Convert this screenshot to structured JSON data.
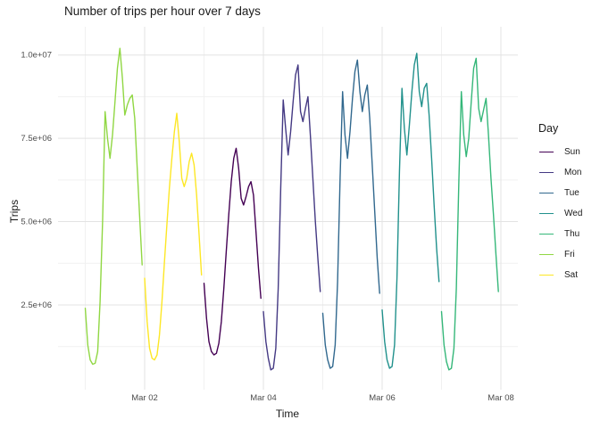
{
  "title": "Number of trips per hour over 7 days",
  "axes": {
    "x_label": "Time",
    "y_label": "Trips",
    "x_tick_labels": [
      "Mar 02",
      "Mar 04",
      "Mar 06",
      "Mar 08"
    ],
    "y_tick_labels": [
      "2.5e+06",
      "5.0e+06",
      "7.5e+06",
      "1.0e+07"
    ]
  },
  "legend": {
    "title": "Day",
    "entries": [
      {
        "label": "Sun",
        "color": "#440154"
      },
      {
        "label": "Mon",
        "color": "#443983"
      },
      {
        "label": "Tue",
        "color": "#31688E"
      },
      {
        "label": "Wed",
        "color": "#21918C"
      },
      {
        "label": "Thu",
        "color": "#35B779"
      },
      {
        "label": "Fri",
        "color": "#90D743"
      },
      {
        "label": "Sat",
        "color": "#FDE725"
      }
    ]
  },
  "chart_data": {
    "type": "line",
    "title": "Number of trips per hour over 7 days",
    "xlabel": "Time",
    "ylabel": "Trips",
    "x_unit": "hour (hourly points, 24 per day, 7 consecutive days)",
    "x_axis_ticks": [
      {
        "label": "Mar 02",
        "hour_offset": 24
      },
      {
        "label": "Mar 04",
        "hour_offset": 72
      },
      {
        "label": "Mar 06",
        "hour_offset": 120
      },
      {
        "label": "Mar 08",
        "hour_offset": 168
      }
    ],
    "x_axis_minor_gridlines_hour_offsets": [
      0,
      48,
      96,
      144
    ],
    "y_axis_ticks": [
      {
        "label": "2.5e+06",
        "value": 2500000
      },
      {
        "label": "5.0e+06",
        "value": 5000000
      },
      {
        "label": "7.5e+06",
        "value": 7500000
      },
      {
        "label": "1.0e+07",
        "value": 10000000
      }
    ],
    "y_axis_minor_gridline_values": [
      1250000,
      3750000,
      6250000,
      8750000
    ],
    "ylim": [
      0,
      10600000
    ],
    "grid": "major and minor, light gray on white background, no panel border",
    "legend_position": "right",
    "legend_title": "Day",
    "legend_order": [
      "Sun",
      "Mon",
      "Tue",
      "Wed",
      "Thu",
      "Fri",
      "Sat"
    ],
    "series_plot_order_note": "Each day drawn as a separate colored segment in chronological order; small gaps between days",
    "series": [
      {
        "name": "Fri",
        "day_index": 0,
        "color": "#90D743",
        "values": [
          2400000,
          1300000,
          850000,
          720000,
          750000,
          1100000,
          2600000,
          5000000,
          8300000,
          7500000,
          6900000,
          7600000,
          8600000,
          9600000,
          10200000,
          9300000,
          8200000,
          8500000,
          8700000,
          8800000,
          8100000,
          6600000,
          5100000,
          3700000
        ]
      },
      {
        "name": "Sat",
        "day_index": 1,
        "color": "#FDE725",
        "values": [
          3300000,
          2000000,
          1200000,
          900000,
          850000,
          1000000,
          1600000,
          2600000,
          3800000,
          4900000,
          6000000,
          6900000,
          7700000,
          8250000,
          7400000,
          6300000,
          6050000,
          6300000,
          6800000,
          7050000,
          6700000,
          5800000,
          4600000,
          3400000
        ]
      },
      {
        "name": "Sun",
        "day_index": 2,
        "color": "#440154",
        "values": [
          3150000,
          2100000,
          1400000,
          1100000,
          1000000,
          1050000,
          1350000,
          2000000,
          3000000,
          4100000,
          5200000,
          6200000,
          6900000,
          7200000,
          6600000,
          5700000,
          5500000,
          5750000,
          6050000,
          6200000,
          5800000,
          4700000,
          3600000,
          2700000
        ]
      },
      {
        "name": "Mon",
        "day_index": 3,
        "color": "#443983",
        "values": [
          2300000,
          1400000,
          900000,
          550000,
          600000,
          1200000,
          3000000,
          6000000,
          8650000,
          7800000,
          7000000,
          7700000,
          8600000,
          9400000,
          9700000,
          8300000,
          8000000,
          8400000,
          8750000,
          7600000,
          6300000,
          5000000,
          3900000,
          2900000
        ]
      },
      {
        "name": "Tue",
        "day_index": 4,
        "color": "#31688E",
        "values": [
          2250000,
          1300000,
          850000,
          600000,
          650000,
          1300000,
          3200000,
          6300000,
          8900000,
          7600000,
          6900000,
          7700000,
          8700000,
          9500000,
          9850000,
          8900000,
          8300000,
          8800000,
          9100000,
          8100000,
          6700000,
          5300000,
          3900000,
          2850000
        ]
      },
      {
        "name": "Wed",
        "day_index": 5,
        "color": "#21918C",
        "values": [
          2350000,
          1400000,
          850000,
          600000,
          650000,
          1300000,
          3300000,
          6500000,
          9000000,
          7800000,
          7000000,
          7900000,
          8900000,
          9700000,
          10050000,
          8900000,
          8450000,
          9000000,
          9150000,
          8200000,
          6900000,
          5500000,
          4200000,
          3200000
        ]
      },
      {
        "name": "Thu",
        "day_index": 6,
        "color": "#35B779",
        "values": [
          2300000,
          1300000,
          800000,
          550000,
          600000,
          1200000,
          3000000,
          6200000,
          8900000,
          7600000,
          6950000,
          7500000,
          8600000,
          9600000,
          9900000,
          8400000,
          8000000,
          8350000,
          8700000,
          7600000,
          6300000,
          5200000,
          4000000,
          2900000
        ]
      }
    ]
  },
  "style_colors": {
    "background": "#ffffff",
    "gridline_major": "#e3e3e3",
    "gridline_minor": "#f1f1f1",
    "tick_label": "#4d4d4d",
    "text": "#1a1a1a"
  }
}
